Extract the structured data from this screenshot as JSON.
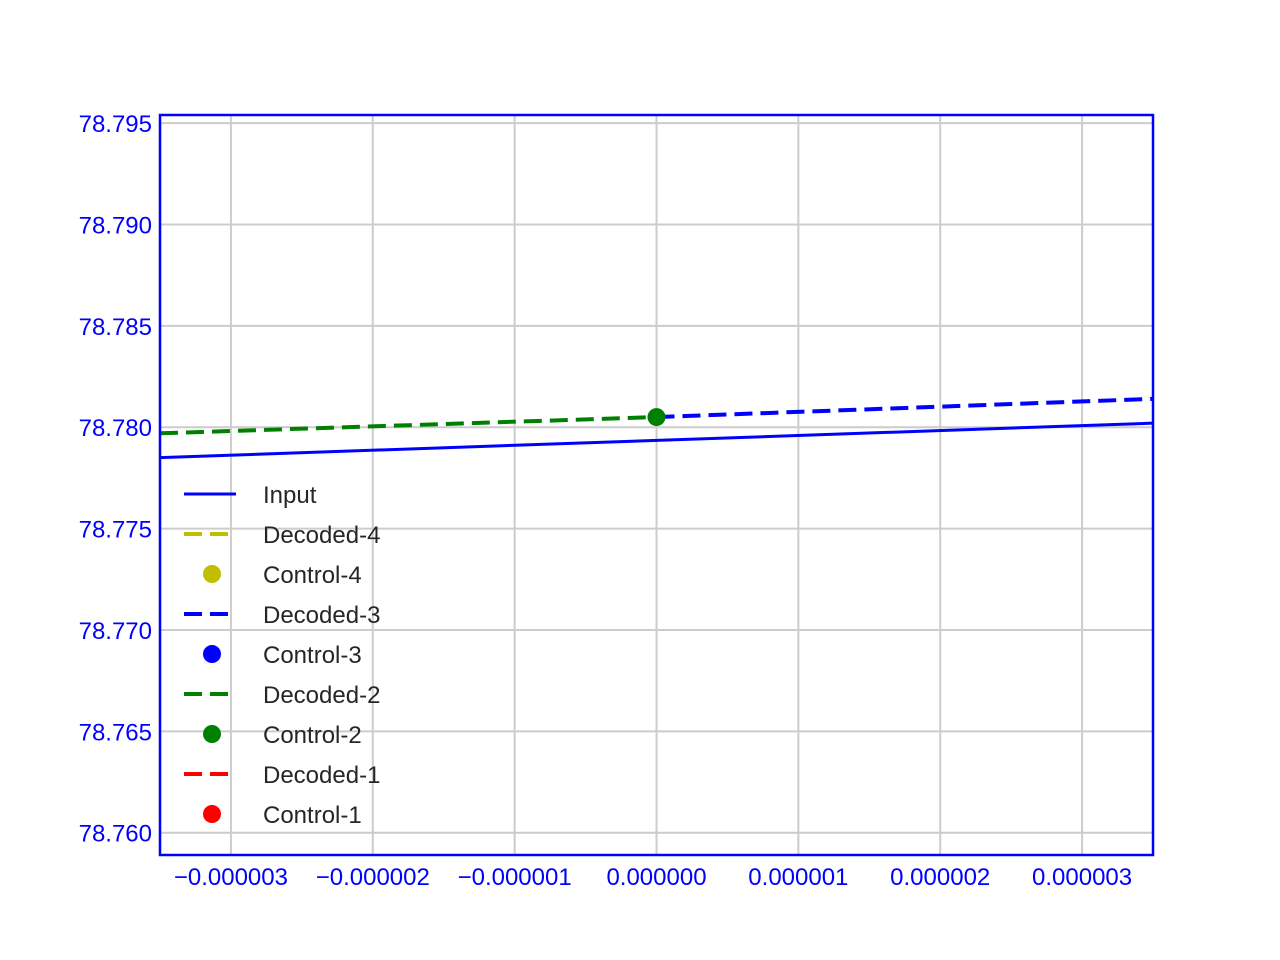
{
  "chart_data": {
    "type": "line",
    "title": "",
    "xlabel": "",
    "ylabel": "",
    "xlim": [
      -3.5e-06,
      3.5e-06
    ],
    "ylim": [
      78.7589,
      78.7954
    ],
    "grid": true,
    "legend_position": "lower-left",
    "axis_color": "#0000ff",
    "x_ticks": [
      -3e-06,
      -2e-06,
      -1e-06,
      0.0,
      1e-06,
      2e-06,
      3e-06
    ],
    "x_tick_labels": [
      "−0.000003",
      "−0.000002",
      "−0.000001",
      "0.000000",
      "0.000001",
      "0.000002",
      "0.000003"
    ],
    "y_ticks": [
      78.76,
      78.765,
      78.77,
      78.775,
      78.78,
      78.785,
      78.79,
      78.795
    ],
    "y_tick_labels": [
      "78.760",
      "78.765",
      "78.770",
      "78.775",
      "78.780",
      "78.785",
      "78.790",
      "78.795"
    ],
    "series": [
      {
        "name": "Input",
        "kind": "line",
        "style": "solid",
        "color": "#0000ff",
        "x": [
          -3.5e-06,
          3.5e-06
        ],
        "y": [
          78.7785,
          78.7802
        ]
      },
      {
        "name": "Decoded-4",
        "kind": "line",
        "style": "dashed",
        "color": "#bfbf00",
        "x": [],
        "y": []
      },
      {
        "name": "Control-4",
        "kind": "marker",
        "color": "#bfbf00",
        "x": [],
        "y": []
      },
      {
        "name": "Decoded-3",
        "kind": "line",
        "style": "dashed",
        "color": "#0000ff",
        "x": [
          0.0,
          3.5e-06
        ],
        "y": [
          78.7805,
          78.7814
        ]
      },
      {
        "name": "Control-3",
        "kind": "marker",
        "color": "#0000ff",
        "x": [],
        "y": []
      },
      {
        "name": "Decoded-2",
        "kind": "line",
        "style": "dashed",
        "color": "#008000",
        "x": [
          -3.5e-06,
          0.0
        ],
        "y": [
          78.7797,
          78.7805
        ]
      },
      {
        "name": "Control-2",
        "kind": "marker",
        "color": "#008000",
        "x": [
          0.0
        ],
        "y": [
          78.7805
        ]
      },
      {
        "name": "Decoded-1",
        "kind": "line",
        "style": "dashed",
        "color": "#ff0000",
        "x": [],
        "y": []
      },
      {
        "name": "Control-1",
        "kind": "marker",
        "color": "#ff0000",
        "x": [],
        "y": []
      }
    ]
  }
}
